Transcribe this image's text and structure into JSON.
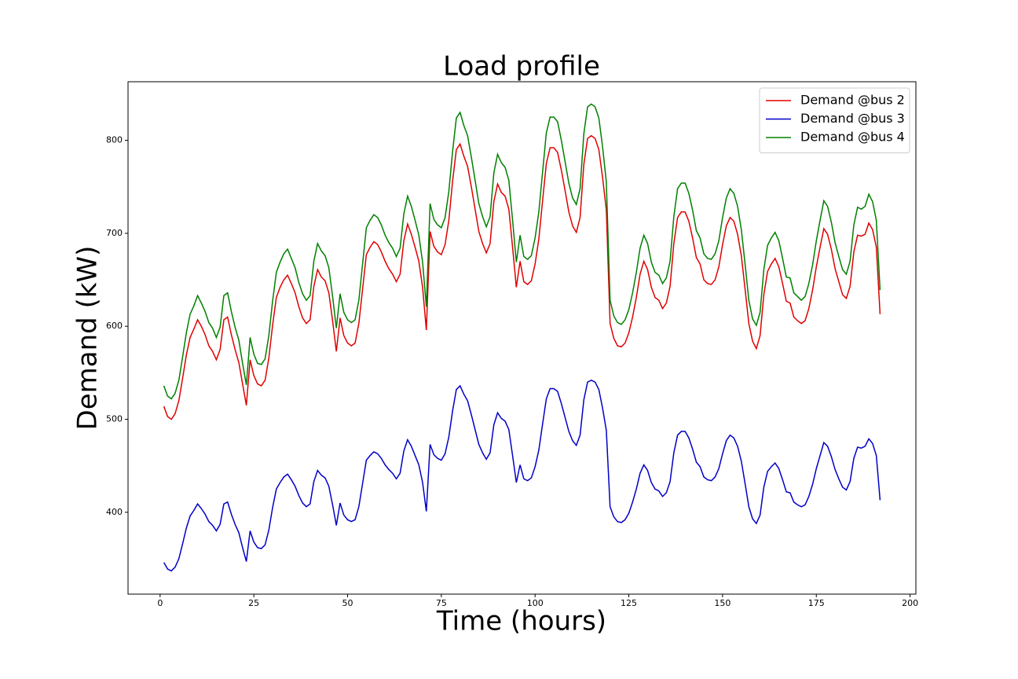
{
  "chart_data": {
    "type": "line",
    "title": "Load profile",
    "x_label": "Time (hours)",
    "y_label": "Demand (kW)",
    "x": [
      1,
      2,
      3,
      4,
      5,
      6,
      7,
      8,
      9,
      10,
      11,
      12,
      13,
      14,
      15,
      16,
      17,
      18,
      19,
      20,
      21,
      22,
      23,
      24,
      25,
      26,
      27,
      28,
      29,
      30,
      31,
      32,
      33,
      34,
      35,
      36,
      37,
      38,
      39,
      40,
      41,
      42,
      43,
      44,
      45,
      46,
      47,
      48,
      49,
      50,
      51,
      52,
      53,
      54,
      55,
      56,
      57,
      58,
      59,
      60,
      61,
      62,
      63,
      64,
      65,
      66,
      67,
      68,
      69,
      70,
      71,
      72,
      73,
      74,
      75,
      76,
      77,
      78,
      79,
      80,
      81,
      82,
      83,
      84,
      85,
      86,
      87,
      88,
      89,
      90,
      91,
      92,
      93,
      94,
      95,
      96,
      97,
      98,
      99,
      100,
      101,
      102,
      103,
      104,
      105,
      106,
      107,
      108,
      109,
      110,
      111,
      112,
      113,
      114,
      115,
      116,
      117,
      118,
      119,
      120,
      121,
      122,
      123,
      124,
      125,
      126,
      127,
      128,
      129,
      130,
      131,
      132,
      133,
      134,
      135,
      136,
      137,
      138,
      139,
      140,
      141,
      142,
      143,
      144,
      145,
      146,
      147,
      148,
      149,
      150,
      151,
      152,
      153,
      154,
      155,
      156,
      157,
      158,
      159,
      160,
      161,
      162,
      163,
      164,
      165,
      166,
      167,
      168,
      169,
      170,
      171,
      172,
      173,
      174,
      175,
      176,
      177,
      178,
      179,
      180,
      181,
      182,
      183,
      184,
      185,
      186,
      187,
      188,
      189,
      190,
      191,
      192
    ],
    "series": [
      {
        "name": "Demand @bus 2",
        "color": "#e00000",
        "values": [
          514,
          503,
          500,
          506,
          520,
          544,
          569,
          588,
          597,
          607,
          600,
          591,
          579,
          573,
          564,
          575,
          607,
          610,
          591,
          575,
          561,
          538,
          515,
          564,
          547,
          538,
          536,
          542,
          566,
          601,
          631,
          642,
          650,
          655,
          646,
          636,
          621,
          609,
          603,
          607,
          643,
          661,
          653,
          649,
          636,
          606,
          573,
          609,
          590,
          582,
          579,
          582,
          603,
          640,
          677,
          685,
          691,
          688,
          680,
          670,
          662,
          656,
          648,
          656,
          692,
          710,
          699,
          685,
          670,
          642,
          596,
          702,
          686,
          680,
          677,
          688,
          714,
          756,
          790,
          796,
          783,
          772,
          750,
          726,
          702,
          689,
          679,
          689,
          734,
          753,
          744,
          740,
          726,
          685,
          642,
          670,
          648,
          645,
          649,
          667,
          694,
          735,
          775,
          792,
          792,
          787,
          768,
          746,
          723,
          708,
          701,
          717,
          774,
          802,
          805,
          802,
          790,
          760,
          725,
          603,
          587,
          579,
          578,
          582,
          593,
          610,
          631,
          656,
          670,
          661,
          642,
          631,
          628,
          619,
          625,
          643,
          689,
          717,
          723,
          723,
          713,
          695,
          674,
          667,
          650,
          646,
          645,
          650,
          664,
          688,
          708,
          717,
          713,
          699,
          676,
          640,
          603,
          584,
          576,
          590,
          634,
          659,
          667,
          673,
          664,
          646,
          627,
          625,
          610,
          606,
          603,
          606,
          619,
          639,
          664,
          685,
          705,
          699,
          683,
          662,
          648,
          634,
          630,
          643,
          680,
          698,
          697,
          699,
          711,
          704,
          685,
          613
        ]
      },
      {
        "name": "Demand @bus 3",
        "color": "#0000c8",
        "values": [
          346,
          339,
          337,
          341,
          350,
          366,
          383,
          396,
          402,
          409,
          404,
          398,
          390,
          386,
          380,
          387,
          409,
          411,
          398,
          387,
          378,
          362,
          347,
          380,
          368,
          362,
          361,
          365,
          381,
          405,
          425,
          432,
          438,
          441,
          435,
          428,
          418,
          410,
          406,
          409,
          433,
          445,
          440,
          437,
          428,
          408,
          386,
          410,
          397,
          392,
          390,
          392,
          406,
          431,
          456,
          461,
          465,
          463,
          458,
          451,
          446,
          442,
          436,
          442,
          466,
          478,
          471,
          461,
          451,
          432,
          401,
          473,
          462,
          458,
          456,
          463,
          481,
          509,
          532,
          536,
          527,
          520,
          505,
          489,
          473,
          464,
          457,
          464,
          494,
          507,
          501,
          498,
          489,
          461,
          432,
          451,
          436,
          434,
          437,
          449,
          467,
          495,
          522,
          533,
          533,
          530,
          517,
          502,
          487,
          477,
          472,
          483,
          521,
          540,
          542,
          540,
          532,
          512,
          488,
          406,
          395,
          390,
          389,
          392,
          399,
          411,
          425,
          442,
          451,
          445,
          432,
          425,
          423,
          417,
          421,
          433,
          464,
          483,
          487,
          487,
          480,
          468,
          454,
          449,
          438,
          435,
          434,
          438,
          447,
          463,
          477,
          483,
          480,
          471,
          455,
          431,
          406,
          393,
          388,
          397,
          427,
          444,
          449,
          453,
          447,
          435,
          422,
          421,
          411,
          408,
          406,
          408,
          417,
          430,
          447,
          461,
          475,
          471,
          460,
          446,
          436,
          427,
          424,
          433,
          458,
          470,
          469,
          471,
          479,
          474,
          461,
          413
        ]
      },
      {
        "name": "Demand @bus 4",
        "color": "#008000",
        "values": [
          536,
          525,
          522,
          528,
          542,
          567,
          593,
          613,
          622,
          633,
          625,
          616,
          604,
          598,
          588,
          599,
          633,
          636,
          616,
          599,
          585,
          560,
          537,
          588,
          570,
          560,
          559,
          565,
          590,
          627,
          658,
          669,
          678,
          683,
          673,
          663,
          647,
          635,
          628,
          633,
          670,
          689,
          681,
          676,
          663,
          632,
          598,
          635,
          615,
          607,
          604,
          607,
          628,
          667,
          706,
          714,
          720,
          717,
          709,
          698,
          690,
          684,
          675,
          684,
          721,
          740,
          729,
          714,
          698,
          669,
          621,
          732,
          715,
          709,
          706,
          717,
          745,
          788,
          824,
          830,
          816,
          805,
          782,
          757,
          732,
          718,
          707,
          718,
          765,
          785,
          776,
          771,
          757,
          714,
          669,
          698,
          675,
          672,
          676,
          695,
          723,
          766,
          808,
          825,
          825,
          820,
          800,
          777,
          754,
          738,
          731,
          748,
          807,
          836,
          839,
          836,
          824,
          793,
          755,
          628,
          611,
          604,
          602,
          607,
          618,
          636,
          658,
          684,
          698,
          689,
          669,
          658,
          655,
          646,
          652,
          670,
          718,
          748,
          754,
          754,
          743,
          725,
          703,
          695,
          678,
          673,
          672,
          678,
          692,
          717,
          738,
          748,
          743,
          729,
          704,
          667,
          628,
          608,
          601,
          615,
          661,
          687,
          695,
          701,
          692,
          673,
          653,
          652,
          636,
          632,
          628,
          632,
          646,
          666,
          692,
          714,
          735,
          729,
          712,
          690,
          675,
          661,
          656,
          670,
          709,
          728,
          726,
          729,
          742,
          734,
          714,
          639
        ]
      }
    ],
    "xlim": [
      -8.55,
      201.55
    ],
    "xticks": [
      0,
      25,
      50,
      75,
      100,
      125,
      150,
      175,
      200
    ],
    "ylim": [
      312,
      863
    ],
    "yticks": [
      400,
      500,
      600,
      700,
      800
    ],
    "grid": false,
    "legend": "upper right"
  }
}
